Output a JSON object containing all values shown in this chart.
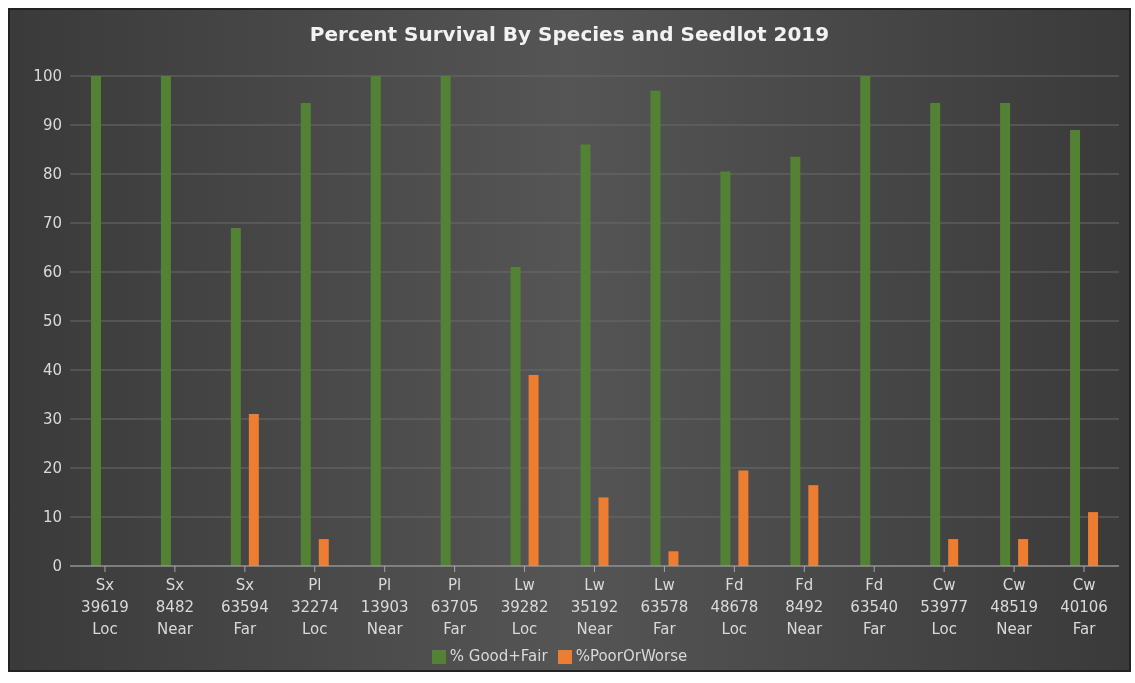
{
  "chart_data": {
    "type": "bar",
    "title": "Percent Survival By Species and Seedlot 2019",
    "categories": [
      "Sx\n39619\nLoc",
      "Sx\n8482\nNear",
      "Sx\n63594\nFar",
      "Pl\n32274\nLoc",
      "Pl\n13903\nNear",
      "Pl\n63705\nFar",
      "Lw\n39282\nLoc",
      "Lw\n35192\nNear",
      "Lw\n63578\nFar",
      "Fd\n48678\nLoc",
      "Fd\n8492\nNear",
      "Fd\n63540\nFar",
      "Cw\n53977\nLoc",
      "Cw\n48519\nNear",
      "Cw\n40106\nFar"
    ],
    "series": [
      {
        "name": "% Good+Fair",
        "color": "#548235",
        "values": [
          100,
          100,
          69,
          94.5,
          100,
          100,
          61,
          86,
          97,
          80.5,
          83.5,
          100,
          94.5,
          94.5,
          89
        ]
      },
      {
        "name": "%PoorOrWorse",
        "color": "#ed7d31",
        "values": [
          0,
          0,
          31,
          5.5,
          0,
          0,
          39,
          14,
          3,
          19.5,
          16.5,
          0,
          5.5,
          5.5,
          11
        ]
      }
    ],
    "ylim": [
      0,
      100
    ],
    "yticks": [
      0,
      10,
      20,
      30,
      40,
      50,
      60,
      70,
      80,
      90,
      100
    ],
    "grid": "y",
    "legend": "bottom"
  }
}
